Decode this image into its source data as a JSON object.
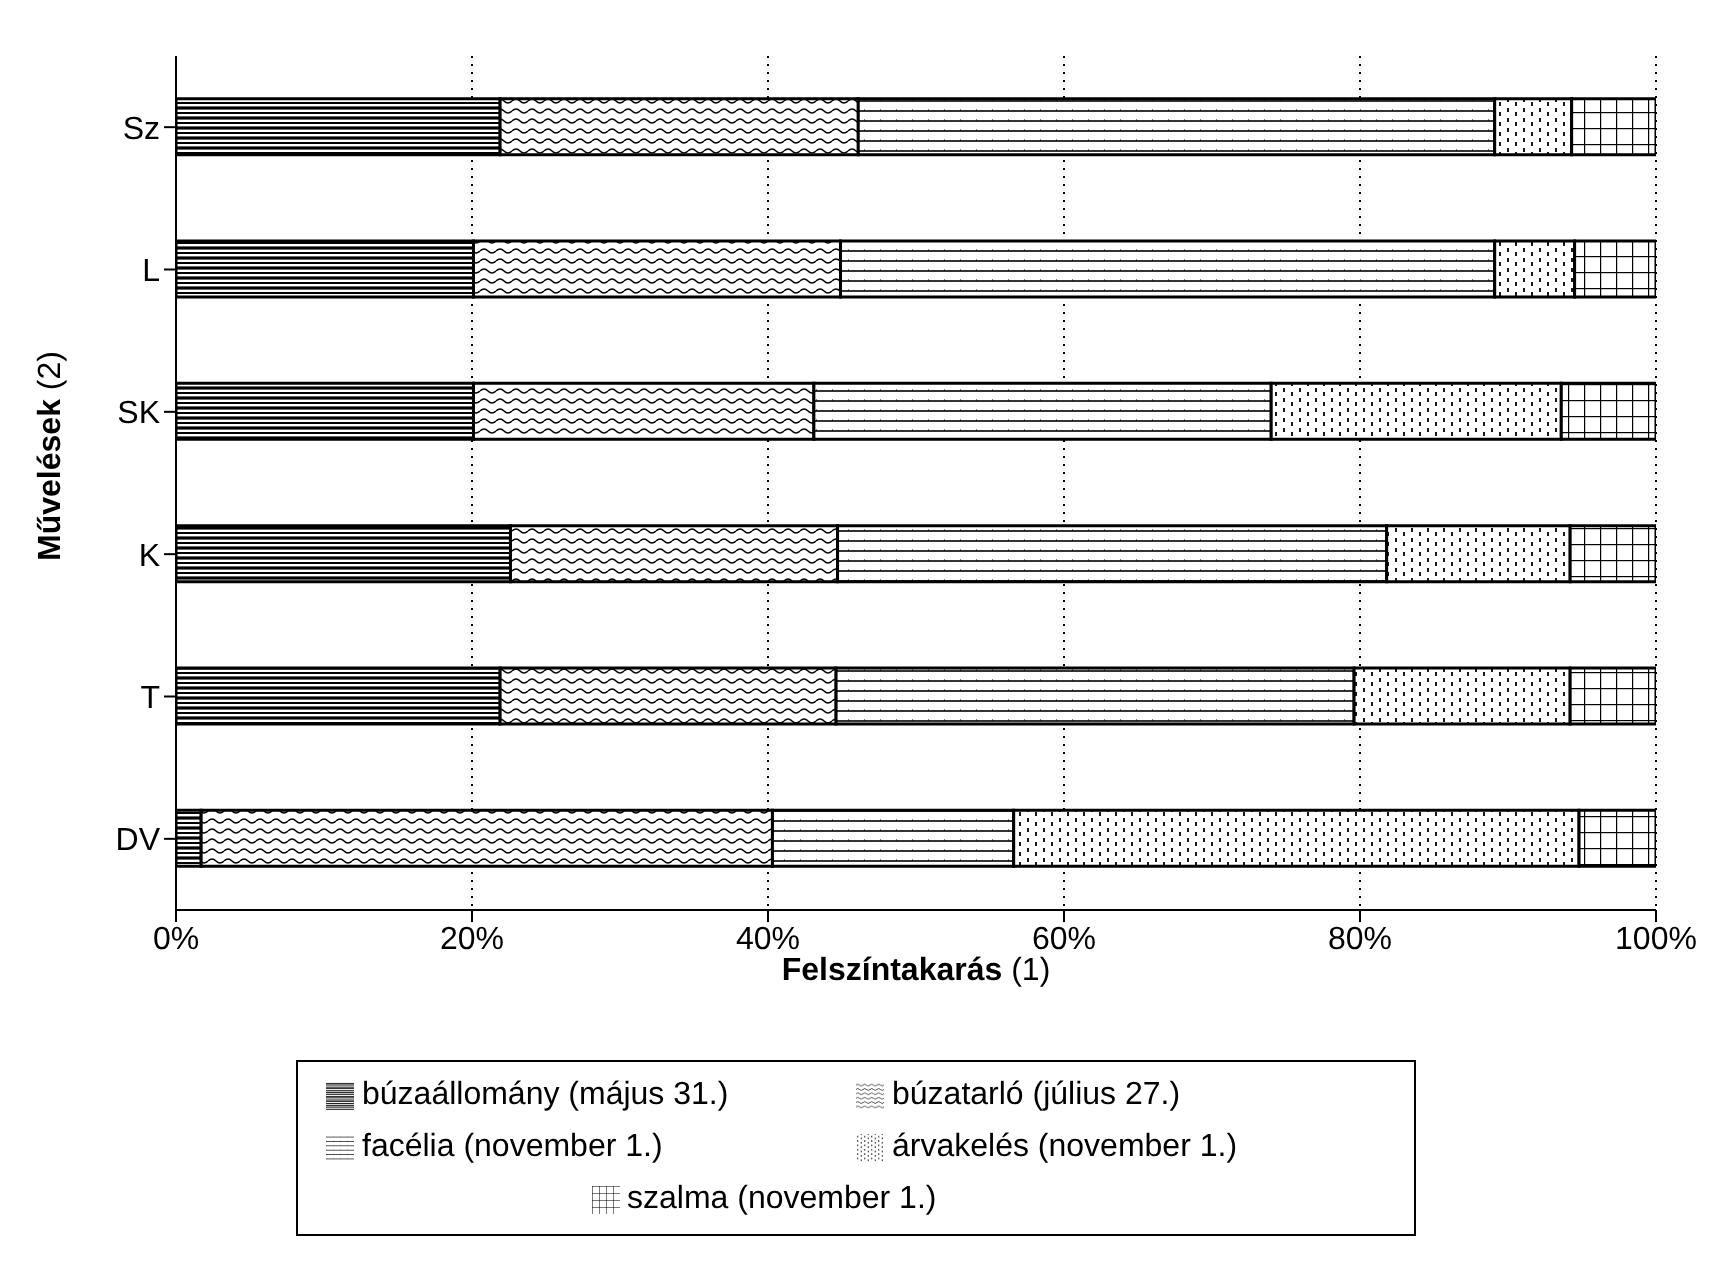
{
  "chart_data": {
    "type": "bar",
    "orientation": "horizontal",
    "stacked": true,
    "xlabel": "Felszíntakarás (1)",
    "ylabel": "Művelések (2)",
    "categories": [
      "Sz",
      "L",
      "SK",
      "K",
      "T",
      "DV"
    ],
    "series": [
      {
        "name": "búzaállomány (május 31.)",
        "color": "#000000",
        "values": [
          21.9,
          20.1,
          20.1,
          22.6,
          21.9,
          1.7
        ]
      },
      {
        "name": "búzatarló (július 27.)",
        "color": "#000000",
        "values": [
          24.2,
          24.8,
          23.0,
          22.1,
          22.7,
          38.6
        ]
      },
      {
        "name": "facélia (november 1.)",
        "color": "#000000",
        "values": [
          43.0,
          44.2,
          30.9,
          37.1,
          35.0,
          16.3
        ]
      },
      {
        "name": "árvakelés (november 1.)",
        "color": "#000000",
        "values": [
          5.2,
          5.4,
          19.6,
          12.4,
          14.6,
          38.2
        ]
      },
      {
        "name": "szalma (november 1.)",
        "color": "#000000",
        "values": [
          5.7,
          5.5,
          6.4,
          5.8,
          5.8,
          5.2
        ]
      }
    ],
    "xlim": [
      0,
      100
    ],
    "xticks": [
      {
        "value": 0,
        "label": "0%"
      },
      {
        "value": 20,
        "label": "20%"
      },
      {
        "value": 40,
        "label": "40%"
      },
      {
        "value": 60,
        "label": "60%"
      },
      {
        "value": 80,
        "label": "80%"
      },
      {
        "value": 100,
        "label": "100%"
      }
    ],
    "grid": "x",
    "legend": "bottom"
  }
}
